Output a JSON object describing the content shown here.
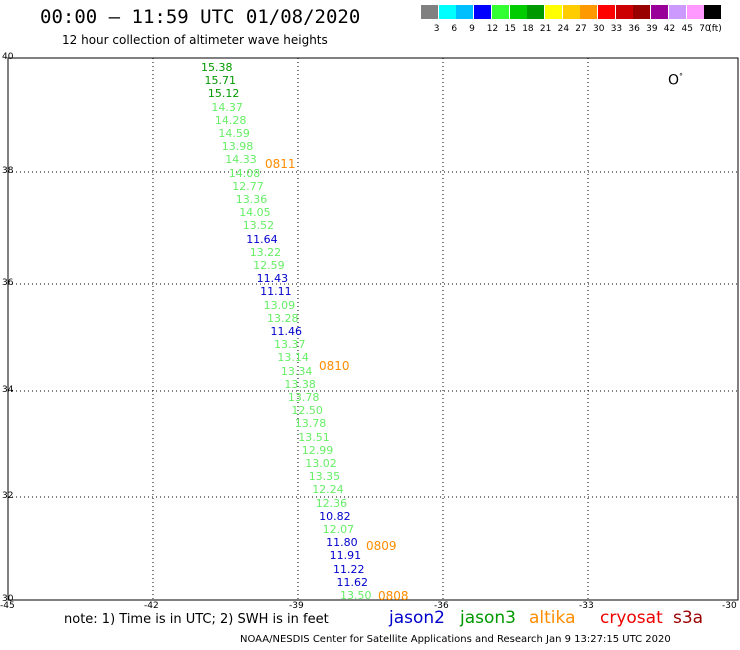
{
  "title": "00:00 – 11:59 UTC 01/08/2020",
  "subtitle": "12 hour collection of altimeter wave heights",
  "legend": {
    "colors": [
      "#808080",
      "#00ffff",
      "#00bfff",
      "#0000ff",
      "#33ff33",
      "#00cc00",
      "#009900",
      "#ffff00",
      "#ffcc00",
      "#ff9900",
      "#ff0000",
      "#cc0000",
      "#990000",
      "#990099",
      "#cc99ff",
      "#ff99ff",
      "#000000"
    ],
    "labels": [
      "3",
      "6",
      "9",
      "12",
      "15",
      "18",
      "21",
      "24",
      "27",
      "30",
      "33",
      "36",
      "39",
      "42",
      "45",
      "70"
    ],
    "unit": "(ft)"
  },
  "axes": {
    "y_labels": [
      "40",
      "38",
      "36",
      "34",
      "32",
      "30"
    ],
    "x_labels": [
      "-45",
      "-42",
      "-39",
      "-36",
      "-33",
      "-30"
    ]
  },
  "observations": [
    {
      "v": "15.38",
      "c": "#009900"
    },
    {
      "v": "15.71",
      "c": "#009900"
    },
    {
      "v": "15.12",
      "c": "#009900"
    },
    {
      "v": "14.37",
      "c": "#66ee66"
    },
    {
      "v": "14.28",
      "c": "#66ee66"
    },
    {
      "v": "14.59",
      "c": "#66ee66"
    },
    {
      "v": "13.98",
      "c": "#66ee66"
    },
    {
      "v": "14.33",
      "c": "#66ee66"
    },
    {
      "v": "14.08",
      "c": "#66ee66"
    },
    {
      "v": "12.77",
      "c": "#66ee66"
    },
    {
      "v": "13.36",
      "c": "#66ee66"
    },
    {
      "v": "14.05",
      "c": "#66ee66"
    },
    {
      "v": "13.52",
      "c": "#66ee66"
    },
    {
      "v": "11.64",
      "c": "#0000cc"
    },
    {
      "v": "13.22",
      "c": "#66ee66"
    },
    {
      "v": "12.59",
      "c": "#66ee66"
    },
    {
      "v": "11.43",
      "c": "#0000cc"
    },
    {
      "v": "11.11",
      "c": "#0000cc"
    },
    {
      "v": "13.09",
      "c": "#66ee66"
    },
    {
      "v": "13.28",
      "c": "#66ee66"
    },
    {
      "v": "11.46",
      "c": "#0000cc"
    },
    {
      "v": "13.37",
      "c": "#66ee66"
    },
    {
      "v": "13.14",
      "c": "#66ee66"
    },
    {
      "v": "13.34",
      "c": "#66ee66"
    },
    {
      "v": "13.38",
      "c": "#66ee66"
    },
    {
      "v": "13.78",
      "c": "#66ee66"
    },
    {
      "v": "12.50",
      "c": "#66ee66"
    },
    {
      "v": "13.78",
      "c": "#66ee66"
    },
    {
      "v": "13.51",
      "c": "#66ee66"
    },
    {
      "v": "12.99",
      "c": "#66ee66"
    },
    {
      "v": "13.02",
      "c": "#66ee66"
    },
    {
      "v": "13.35",
      "c": "#66ee66"
    },
    {
      "v": "12.24",
      "c": "#66ee66"
    },
    {
      "v": "12.36",
      "c": "#66ee66"
    },
    {
      "v": "10.82",
      "c": "#0000cc"
    },
    {
      "v": "12.07",
      "c": "#66ee66"
    },
    {
      "v": "11.80",
      "c": "#0000cc"
    },
    {
      "v": "11.91",
      "c": "#0000cc"
    },
    {
      "v": "11.22",
      "c": "#0000cc"
    },
    {
      "v": "11.62",
      "c": "#0000cc"
    },
    {
      "v": "13.50",
      "c": "#66ee66"
    }
  ],
  "time_labels": [
    "0811",
    "0810",
    "0809",
    "0808"
  ],
  "north_symbol": "O",
  "note": "note:  1) Time is in UTC;  2) SWH is in feet",
  "satellites": [
    {
      "name": "jason2",
      "color": "#0000cc"
    },
    {
      "name": "jason3",
      "color": "#009900"
    },
    {
      "name": "altika",
      "color": "#ff8c00"
    },
    {
      "name": "cryosat",
      "color": "#ee0000"
    },
    {
      "name": "s3a",
      "color": "#990000"
    }
  ],
  "credit": "NOAA/NESDIS Center for Satellite Applications and Research   Jan  9 13:27:15 UTC 2020"
}
